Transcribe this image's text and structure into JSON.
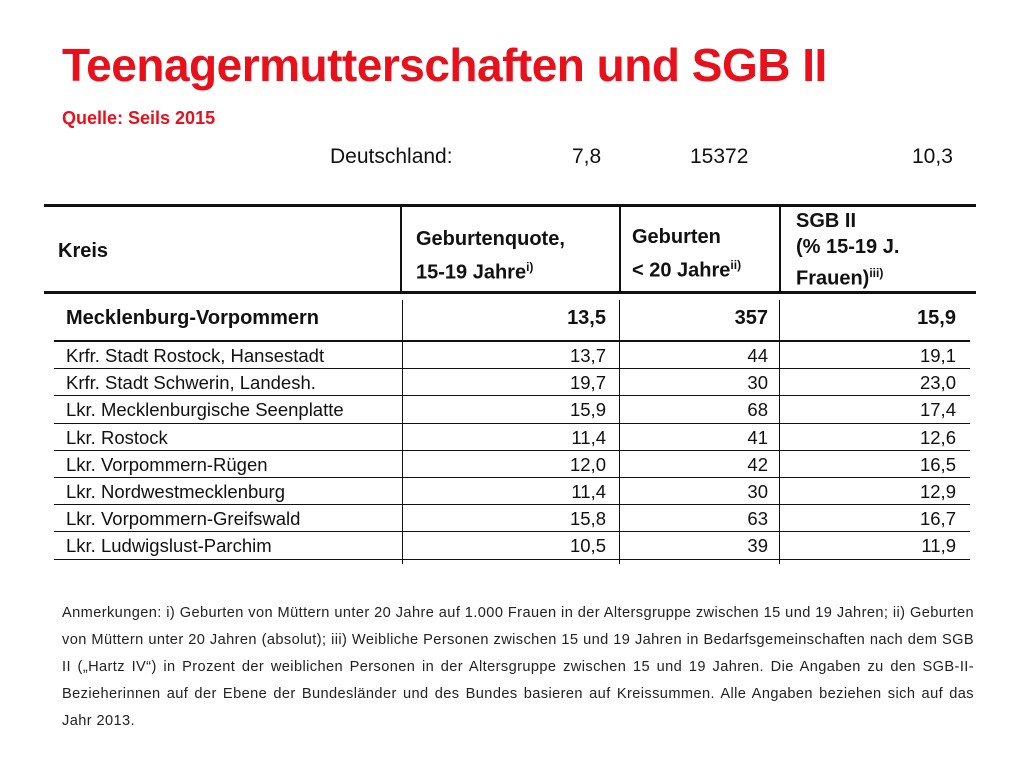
{
  "slide": {
    "title": "Teenagermutterschaften und SGB II",
    "subtitle": "Quelle: Seils 2015"
  },
  "summary": {
    "label": "Deutschland:",
    "birth_rate": "7,8",
    "births": "15372",
    "sgb_share": "10,3"
  },
  "table": {
    "headers": {
      "kreis": "Kreis",
      "rate_line1": "Geburtenquote,",
      "rate_line2": "15-19 Jahre",
      "rate_note": "i)",
      "births_line1": "Geburten",
      "births_line2": "< 20 Jahre",
      "births_note": "ii)",
      "sgb_line1": "SGB II",
      "sgb_line2": "(% 15-19 J.",
      "sgb_line3": "Frauen)",
      "sgb_note": "iii)"
    },
    "state": {
      "name": "Mecklenburg-Vorpommern",
      "rate": "13,5",
      "births": "357",
      "sgb": "15,9"
    },
    "rows": [
      {
        "name": "Krfr. Stadt Rostock, Hansestadt",
        "rate": "13,7",
        "births": "44",
        "sgb": "19,1"
      },
      {
        "name": "Krfr. Stadt Schwerin, Landesh.",
        "rate": "19,7",
        "births": "30",
        "sgb": "23,0"
      },
      {
        "name": "Lkr. Mecklenburgische Seenplatte",
        "rate": "15,9",
        "births": "68",
        "sgb": "17,4"
      },
      {
        "name": "Lkr. Rostock",
        "rate": "11,4",
        "births": "41",
        "sgb": "12,6"
      },
      {
        "name": "Lkr. Vorpommern-Rügen",
        "rate": "12,0",
        "births": "42",
        "sgb": "16,5"
      },
      {
        "name": "Lkr. Nordwestmecklenburg",
        "rate": "11,4",
        "births": "30",
        "sgb": "12,9"
      },
      {
        "name": "Lkr. Vorpommern-Greifswald",
        "rate": "15,8",
        "births": "63",
        "sgb": "16,7"
      },
      {
        "name": "Lkr. Ludwigslust-Parchim",
        "rate": "10,5",
        "births": "39",
        "sgb": "11,9"
      }
    ]
  },
  "notes": "Anmerkungen: i) Geburten von Müttern unter 20 Jahre auf 1.000 Frauen in der Altersgruppe zwischen 15 und 19 Jahren; ii) Geburten von Müttern unter 20 Jahren (absolut); iii) Weibliche Personen zwischen 15 und 19 Jahren in Bedarfsgemeinschaften nach dem SGB II („Hartz IV“) in Prozent der weiblichen Personen in der Altersgruppe zwischen 15 und 19 Jahren. Die Angaben zu den SGB-II-Bezieherinnen auf der Ebene der Bundesländer und des Bundes basieren auf Kreissummen. Alle Angaben beziehen sich auf das Jahr 2013."
}
